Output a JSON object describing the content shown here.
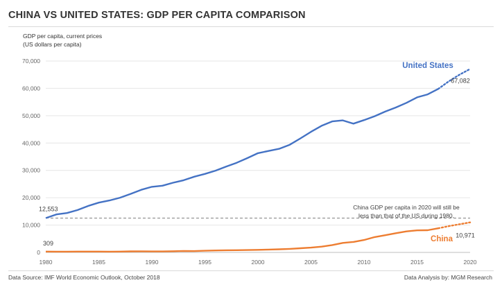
{
  "chart_data": {
    "type": "line",
    "title": "CHINA VS UNITED STATES: GDP PER CAPITA COMPARISON",
    "ylabel_line1": "GDP per capita, current prices",
    "ylabel_line2": "(US dollars per capita)",
    "xlim": [
      1980,
      2020
    ],
    "ylim": [
      0,
      70000
    ],
    "x_ticks": [
      "1980",
      "1985",
      "1990",
      "1995",
      "2000",
      "2005",
      "2010",
      "2015",
      "2020"
    ],
    "y_ticks": [
      "0",
      "10,000",
      "20,000",
      "30,000",
      "40,000",
      "50,000",
      "60,000",
      "70,000"
    ],
    "grid": "horizontal",
    "series": [
      {
        "name": "United States",
        "color": "#4472c4",
        "x": [
          1980,
          1981,
          1982,
          1983,
          1984,
          1985,
          1986,
          1987,
          1988,
          1989,
          1990,
          1991,
          1992,
          1993,
          1994,
          1995,
          1996,
          1997,
          1998,
          1999,
          2000,
          2001,
          2002,
          2003,
          2004,
          2005,
          2006,
          2007,
          2008,
          2009,
          2010,
          2011,
          2012,
          2013,
          2014,
          2015,
          2016,
          2017
        ],
        "values": [
          12553,
          13900,
          14400,
          15500,
          17000,
          18200,
          19000,
          20000,
          21400,
          22900,
          24000,
          24400,
          25500,
          26400,
          27700,
          28700,
          29900,
          31400,
          32800,
          34500,
          36300,
          37100,
          37900,
          39400,
          41700,
          44100,
          46300,
          47900,
          48300,
          47100,
          48400,
          49800,
          51500,
          53000,
          54700,
          56700,
          57800,
          59800
        ],
        "proj_x": [
          2017,
          2018,
          2019,
          2020
        ],
        "proj_values": [
          59800,
          62600,
          65000,
          67082
        ],
        "start_label": "12,553",
        "end_label": "67,082"
      },
      {
        "name": "China",
        "color": "#ed7d31",
        "x": [
          1980,
          1981,
          1982,
          1983,
          1984,
          1985,
          1986,
          1987,
          1988,
          1989,
          1990,
          1991,
          1992,
          1993,
          1994,
          1995,
          1996,
          1997,
          1998,
          1999,
          2000,
          2001,
          2002,
          2003,
          2004,
          2005,
          2006,
          2007,
          2008,
          2009,
          2010,
          2011,
          2012,
          2013,
          2014,
          2015,
          2016,
          2017
        ],
        "values": [
          309,
          290,
          280,
          300,
          310,
          300,
          280,
          300,
          370,
          400,
          350,
          360,
          420,
          520,
          470,
          600,
          700,
          780,
          820,
          870,
          950,
          1050,
          1150,
          1290,
          1510,
          1750,
          2100,
          2700,
          3470,
          3830,
          4550,
          5610,
          6300,
          7020,
          7680,
          8070,
          8120,
          8830
        ],
        "proj_x": [
          2017,
          2018,
          2019,
          2020
        ],
        "proj_values": [
          8830,
          9600,
          10300,
          10971
        ],
        "start_label": "309",
        "end_label": "10,971"
      }
    ],
    "reference_line": {
      "value": 12553,
      "color": "#7f7f7f"
    },
    "annotation_line1": "China GDP per capita in 2020 will still be",
    "annotation_line2": "less than that of the US during 1980."
  },
  "footer": {
    "source": "Data Source: IMF World Economic Outlook, October 2018",
    "analysis": "Data Analysis by: MGM Research"
  }
}
